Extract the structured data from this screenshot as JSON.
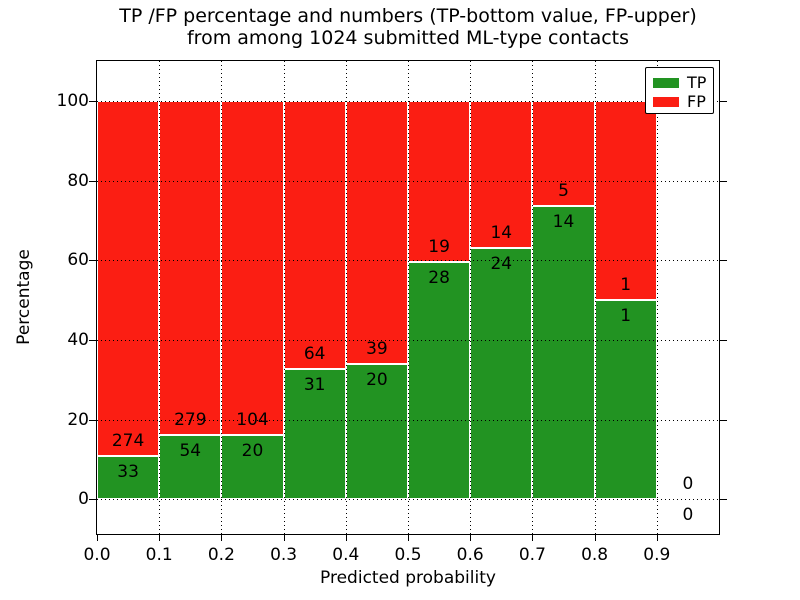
{
  "title": {
    "line1": "TP /FP percentage and numbers (TP-bottom value, FP-upper)",
    "line2": "from among 1024 submitted ML-type contacts"
  },
  "axes": {
    "x_label": "Predicted probability",
    "y_label": "Percentage",
    "x_ticks": [
      "0.0",
      "0.1",
      "0.2",
      "0.3",
      "0.4",
      "0.5",
      "0.6",
      "0.7",
      "0.8",
      "0.9"
    ],
    "y_ticks": [
      "0",
      "20",
      "40",
      "60",
      "80",
      "100"
    ]
  },
  "legend": {
    "items": [
      {
        "label": "TP",
        "color": "#229322"
      },
      {
        "label": "FP",
        "color": "#fb1e13"
      }
    ]
  },
  "colors": {
    "tp": "#229322",
    "fp": "#fb1e13",
    "grid": "#000000",
    "frame": "#000000",
    "background": "#ffffff"
  },
  "chart_data": {
    "type": "bar",
    "subtype": "stacked-percentage-histogram",
    "title": "TP /FP percentage and numbers (TP-bottom value, FP-upper) from among 1024 submitted ML-type contacts",
    "xlabel": "Predicted probability",
    "ylabel": "Percentage",
    "xlim": [
      0.0,
      1.0
    ],
    "ylim": [
      -10,
      110
    ],
    "visible_y_range": [
      0,
      100
    ],
    "grid": true,
    "legend_position": "upper right",
    "total_contacts": 1024,
    "bin_width": 0.1,
    "series": [
      {
        "name": "TP",
        "color": "#229322",
        "position": "bottom"
      },
      {
        "name": "FP",
        "color": "#fb1e13",
        "position": "top"
      }
    ],
    "bins": [
      {
        "range": [
          0.0,
          0.1
        ],
        "tp": 33,
        "fp": 274
      },
      {
        "range": [
          0.1,
          0.2
        ],
        "tp": 54,
        "fp": 279
      },
      {
        "range": [
          0.2,
          0.3
        ],
        "tp": 20,
        "fp": 104
      },
      {
        "range": [
          0.3,
          0.4
        ],
        "tp": 31,
        "fp": 64
      },
      {
        "range": [
          0.4,
          0.5
        ],
        "tp": 20,
        "fp": 39
      },
      {
        "range": [
          0.5,
          0.6
        ],
        "tp": 28,
        "fp": 19
      },
      {
        "range": [
          0.6,
          0.7
        ],
        "tp": 24,
        "fp": 14
      },
      {
        "range": [
          0.7,
          0.8
        ],
        "tp": 14,
        "fp": 5
      },
      {
        "range": [
          0.8,
          0.9
        ],
        "tp": 1,
        "fp": 1
      },
      {
        "range": [
          0.9,
          1.0
        ],
        "tp": 0,
        "fp": 0
      }
    ]
  }
}
